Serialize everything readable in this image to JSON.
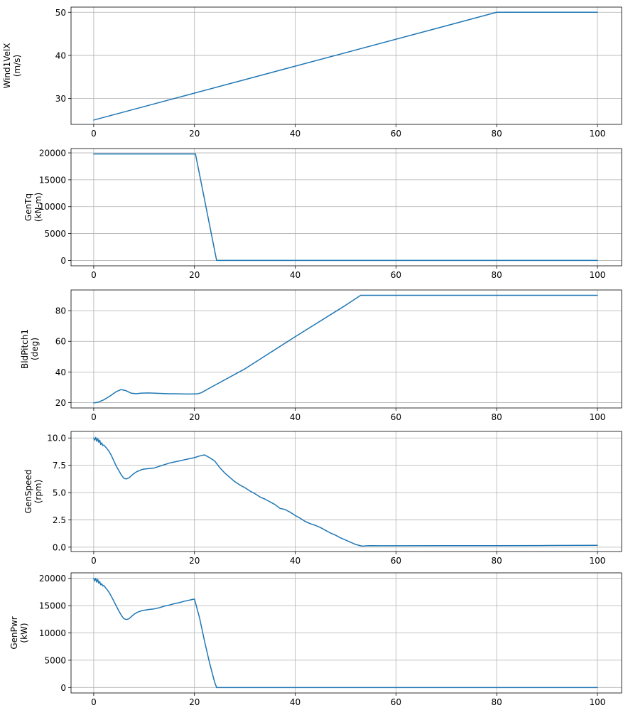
{
  "figure": {
    "colors": {
      "series": "#1f77b4",
      "grid": "#b0b0b0",
      "axes": "#000000"
    }
  },
  "chart_data": [
    {
      "type": "line",
      "ylabel": [
        "Wind1VelX",
        "(m/s)"
      ],
      "xlim": [
        -4.5,
        104.8
      ],
      "ylim": [
        24,
        51.2
      ],
      "xticks": [
        0,
        20,
        40,
        60,
        80,
        100
      ],
      "yticks": [
        30,
        40,
        50
      ],
      "ytick_labels": [
        "30",
        "40",
        "50"
      ],
      "grid": true,
      "series": [
        {
          "x": [
            0,
            80,
            100
          ],
          "y": [
            25,
            50,
            50
          ]
        }
      ]
    },
    {
      "type": "line",
      "ylabel": [
        "GenTq",
        "(kN-m)"
      ],
      "xlim": [
        -4.5,
        104.8
      ],
      "ylim": [
        -1000,
        20800
      ],
      "xticks": [
        0,
        20,
        40,
        60,
        80,
        100
      ],
      "yticks": [
        0,
        5000,
        10000,
        15000,
        20000
      ],
      "ytick_labels": [
        "0",
        "5000",
        "10000",
        "15000",
        "20000"
      ],
      "grid": true,
      "series": [
        {
          "x": [
            0,
            20.2,
            24.4,
            100
          ],
          "y": [
            19800,
            19800,
            0,
            0
          ]
        }
      ]
    },
    {
      "type": "line",
      "ylabel": [
        "BldPitch1",
        "(deg)"
      ],
      "xlim": [
        -4.5,
        104.8
      ],
      "ylim": [
        16.5,
        93.5
      ],
      "xticks": [
        0,
        20,
        40,
        60,
        80,
        100
      ],
      "yticks": [
        20,
        40,
        60,
        80
      ],
      "ytick_labels": [
        "20",
        "40",
        "60",
        "80"
      ],
      "grid": true,
      "series": [
        {
          "x": [
            0,
            0.8,
            2,
            3.2,
            4.4,
            5.4,
            6.4,
            7.4,
            8.4,
            9.5,
            11,
            13,
            15,
            17,
            19,
            20.6,
            21.4,
            23,
            30,
            40,
            50,
            53,
            60,
            80,
            100
          ],
          "y": [
            19.8,
            20.2,
            21.8,
            24.2,
            27,
            28.5,
            27.8,
            26.2,
            25.8,
            26.2,
            26.3,
            26,
            25.8,
            25.7,
            25.6,
            25.7,
            26.5,
            29.5,
            42,
            63,
            83.5,
            90,
            90,
            90,
            90
          ]
        }
      ]
    },
    {
      "type": "line",
      "ylabel": [
        "GenSpeed",
        "(rpm)"
      ],
      "xlim": [
        -4.5,
        104.8
      ],
      "ylim": [
        -0.4,
        10.6
      ],
      "xticks": [
        0,
        20,
        40,
        60,
        80,
        100
      ],
      "yticks": [
        0,
        2.5,
        5,
        7.5,
        10
      ],
      "ytick_labels": [
        "0.0",
        "2.5",
        "5.0",
        "7.5",
        "10.0"
      ],
      "grid": true,
      "series": [
        {
          "x": [
            0,
            0.2,
            0.4,
            0.6,
            0.8,
            1.0,
            1.2,
            1.4,
            1.6,
            1.8,
            2.0,
            2.5,
            3,
            3.5,
            4,
            4.5,
            5,
            5.5,
            6,
            6.5,
            7,
            7.5,
            8,
            8.5,
            9,
            9.5,
            10,
            11,
            12,
            13,
            14,
            15,
            16,
            17,
            18,
            19,
            20,
            21,
            22,
            23,
            24,
            25,
            26,
            27,
            28,
            29,
            30,
            31,
            32,
            33,
            34,
            35,
            36,
            37,
            38,
            39,
            40,
            41,
            42,
            43,
            44,
            45,
            46,
            47,
            48,
            49,
            50,
            51,
            52,
            53,
            53.5,
            54,
            55,
            57,
            60,
            70,
            80,
            90,
            100
          ],
          "y": [
            10.0,
            9.8,
            10.05,
            9.7,
            9.95,
            9.6,
            9.8,
            9.4,
            9.55,
            9.3,
            9.35,
            9.1,
            8.8,
            8.4,
            7.9,
            7.4,
            7.0,
            6.6,
            6.3,
            6.25,
            6.35,
            6.55,
            6.75,
            6.9,
            7.0,
            7.1,
            7.15,
            7.2,
            7.25,
            7.4,
            7.55,
            7.7,
            7.8,
            7.9,
            8.0,
            8.1,
            8.2,
            8.35,
            8.45,
            8.2,
            7.9,
            7.3,
            6.8,
            6.4,
            6.0,
            5.7,
            5.45,
            5.15,
            4.9,
            4.6,
            4.4,
            4.15,
            3.9,
            3.55,
            3.45,
            3.2,
            2.9,
            2.65,
            2.35,
            2.15,
            2.0,
            1.8,
            1.55,
            1.3,
            1.1,
            0.85,
            0.65,
            0.45,
            0.25,
            0.12,
            0.1,
            0.12,
            0.14,
            0.13,
            0.13,
            0.14,
            0.14,
            0.15,
            0.17
          ]
        }
      ]
    },
    {
      "type": "line",
      "ylabel": [
        "GenPwr",
        "(kW)"
      ],
      "xlim": [
        -4.5,
        104.8
      ],
      "ylim": [
        -1000,
        21000
      ],
      "xticks": [
        0,
        20,
        40,
        60,
        80,
        100
      ],
      "yticks": [
        0,
        5000,
        10000,
        15000,
        20000
      ],
      "ytick_labels": [
        "0",
        "5000",
        "10000",
        "15000",
        "20000"
      ],
      "grid": true,
      "series": [
        {
          "x": [
            0,
            0.2,
            0.4,
            0.6,
            0.8,
            1.0,
            1.2,
            1.4,
            1.6,
            1.8,
            2.0,
            2.5,
            3,
            3.5,
            4,
            4.5,
            5,
            5.5,
            6,
            6.5,
            7,
            7.5,
            8,
            8.5,
            9,
            9.5,
            10,
            11,
            12,
            13,
            14,
            15,
            16,
            17,
            18,
            19,
            20,
            21,
            22,
            23,
            24,
            24.4,
            30,
            40,
            60,
            80,
            100
          ],
          "y": [
            20000,
            19500,
            20000,
            19300,
            19800,
            19100,
            19400,
            18800,
            19000,
            18600,
            18700,
            18100,
            17500,
            16700,
            15800,
            14900,
            14000,
            13200,
            12600,
            12450,
            12600,
            13000,
            13400,
            13700,
            13900,
            14050,
            14150,
            14300,
            14400,
            14600,
            14900,
            15100,
            15350,
            15550,
            15800,
            16000,
            16200,
            12800,
            8500,
            4500,
            1000,
            0,
            0,
            0,
            0,
            0,
            0
          ]
        }
      ]
    }
  ]
}
